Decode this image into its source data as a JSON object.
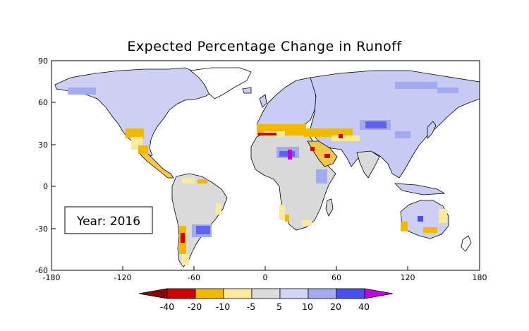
{
  "title": "Expected Percentage Change in Runoff",
  "year_label": "Year: 2016",
  "x_ticks": [
    "-180",
    "-120",
    "-60",
    "0",
    "60",
    "120",
    "180"
  ],
  "y_ticks": [
    "90",
    "60",
    "30",
    "0",
    "-30",
    "-60"
  ],
  "colorbar": {
    "labels": [
      "-40",
      "-20",
      "-10",
      "-5",
      "5",
      "10",
      "20",
      "40"
    ],
    "colors": [
      "#8b0000",
      "#cc0000",
      "#f2b800",
      "#fce9a0",
      "#dcdcdc",
      "#d1d4f4",
      "#a4aaf0",
      "#4a4ff0",
      "#c000e0"
    ]
  },
  "map_colors": {
    "land_neutral": "#d9d9d9",
    "wet_light": "#c9cdf5",
    "wet_medium": "#a4aaf0",
    "wet_strong": "#5f63ee",
    "dry_light": "#fce9a0",
    "dry_medium": "#f2b800",
    "dry_strong": "#cc0000",
    "extreme_wet": "#c000e0"
  }
}
